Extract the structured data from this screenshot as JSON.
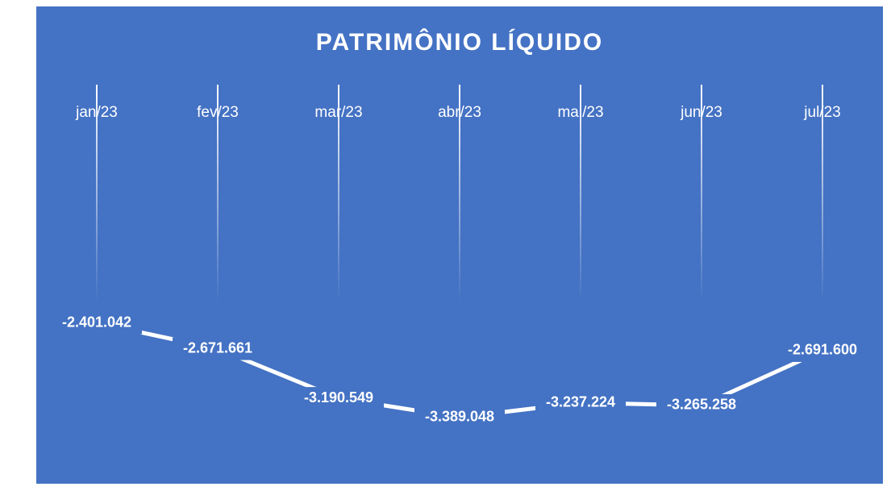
{
  "chart_data": {
    "type": "line",
    "title": "PATRIMÔNIO LÍQUIDO",
    "categories": [
      "jan/23",
      "fev/23",
      "mar/23",
      "abr/23",
      "mai/23",
      "jun/23",
      "jul/23"
    ],
    "values": [
      -2401042,
      -2671661,
      -3190549,
      -3389048,
      -3237224,
      -3265258,
      -2691600
    ],
    "value_labels": [
      "-2.401.042",
      "-2.671.661",
      "-3.190.549",
      "-3.389.048",
      "-3.237.224",
      "-3.265.258",
      "-2.691.600"
    ],
    "color": "#ffffff",
    "background": "#4472c4",
    "ylim": [
      -4000000,
      0
    ]
  }
}
